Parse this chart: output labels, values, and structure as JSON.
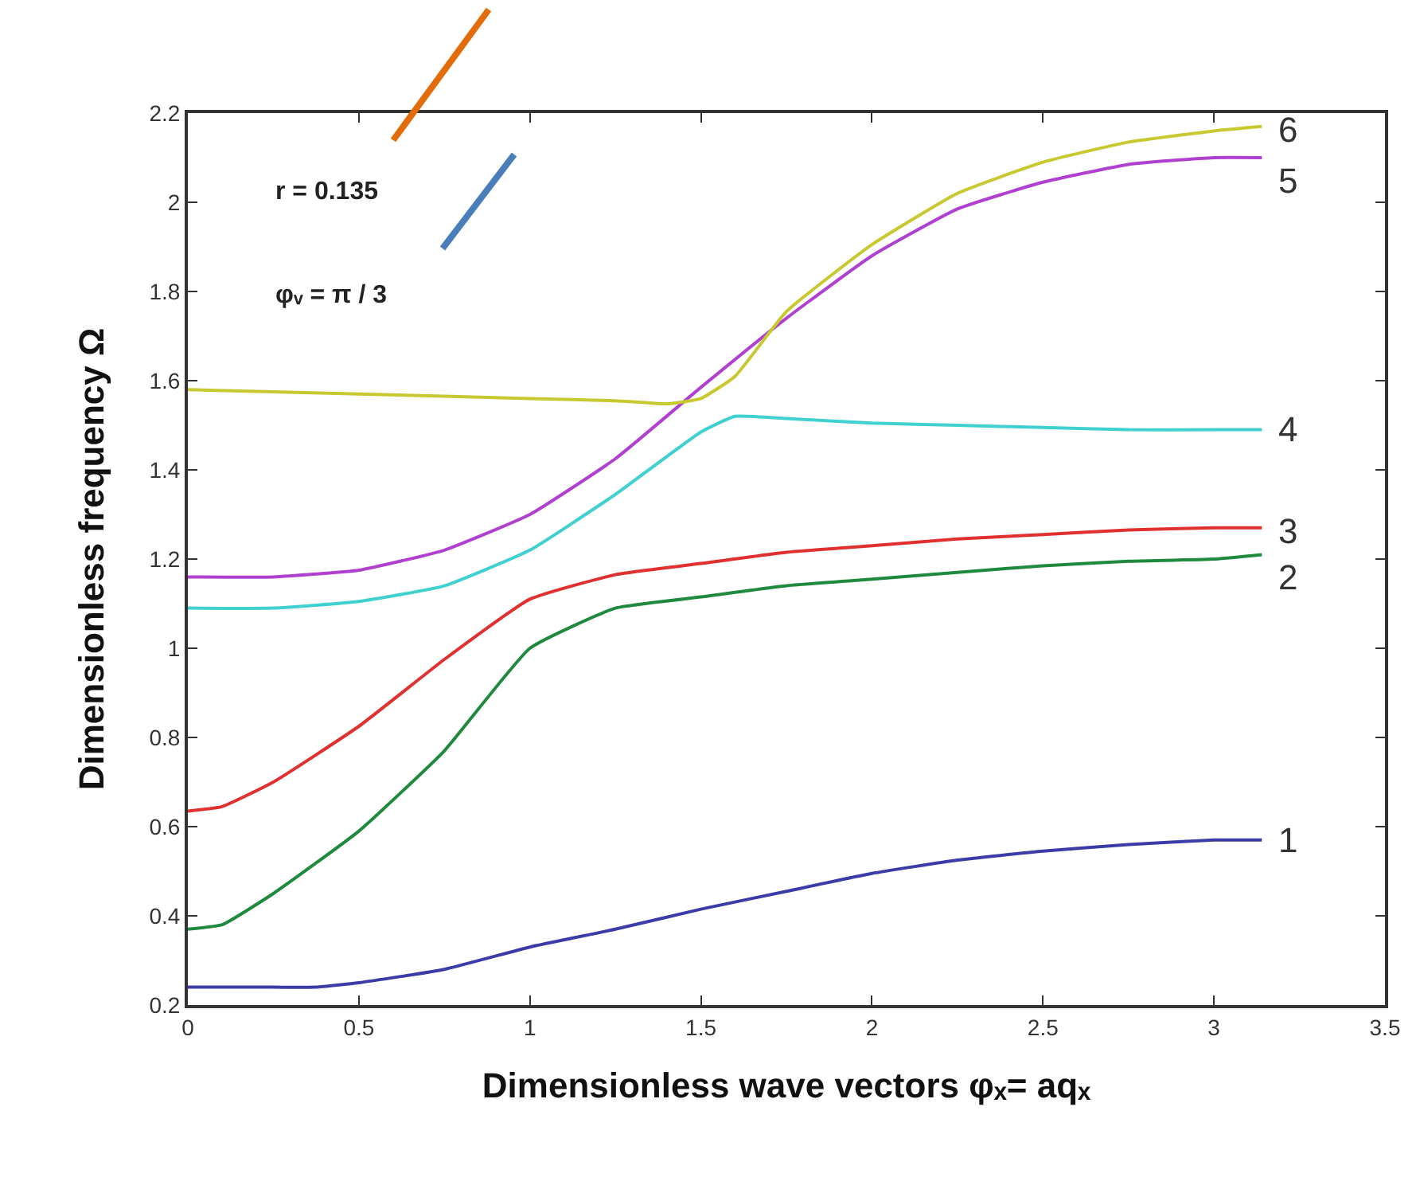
{
  "chart_data": {
    "type": "line",
    "xlabel": "Dimensionless wave vectors φₓ= aqₓ",
    "ylabel": "Dimensionless frequency Ω",
    "annotations": [
      "r = 0.135",
      "φᵥ = π / 3"
    ],
    "xlim": [
      0,
      3.5
    ],
    "xticks": [
      0,
      0.5,
      1,
      1.5,
      2,
      2.5,
      3,
      3.5
    ],
    "ylim": [
      0.2,
      2.2
    ],
    "yticks": [
      0.2,
      0.4,
      0.6,
      0.8,
      1,
      1.2,
      1.4,
      1.6,
      1.8,
      2,
      2.2
    ],
    "grid": false,
    "legend": false,
    "marker": "none",
    "line_style": "solid",
    "series": [
      {
        "name": "1",
        "color": "#3c3ca8",
        "x": [
          0,
          0.25,
          0.375,
          0.5,
          0.75,
          1,
          1.25,
          1.5,
          1.75,
          2,
          2.25,
          2.5,
          2.75,
          3,
          3.14
        ],
        "values": [
          0.24,
          0.24,
          0.24,
          0.25,
          0.28,
          0.33,
          0.37,
          0.415,
          0.455,
          0.495,
          0.525,
          0.545,
          0.56,
          0.57,
          0.57
        ]
      },
      {
        "name": "2",
        "color": "#1f8a3e",
        "x": [
          0,
          0.1,
          0.25,
          0.5,
          0.75,
          1,
          1.25,
          1.5,
          1.75,
          2,
          2.25,
          2.5,
          2.75,
          3,
          3.14
        ],
        "values": [
          0.37,
          0.38,
          0.45,
          0.59,
          0.77,
          1.0,
          1.09,
          1.115,
          1.14,
          1.155,
          1.17,
          1.185,
          1.195,
          1.2,
          1.21
        ]
      },
      {
        "name": "3",
        "color": "#e03030",
        "x": [
          0,
          0.1,
          0.25,
          0.5,
          0.75,
          1,
          1.25,
          1.5,
          1.75,
          2,
          2.25,
          2.5,
          2.75,
          3,
          3.14
        ],
        "values": [
          0.635,
          0.645,
          0.7,
          0.825,
          0.975,
          1.11,
          1.165,
          1.19,
          1.215,
          1.23,
          1.245,
          1.255,
          1.265,
          1.27,
          1.27
        ]
      },
      {
        "name": "4",
        "color": "#40d0d0",
        "x": [
          0,
          0.25,
          0.5,
          0.75,
          1,
          1.25,
          1.5,
          1.6,
          1.75,
          2,
          2.25,
          2.5,
          2.75,
          3,
          3.14
        ],
        "values": [
          1.09,
          1.09,
          1.105,
          1.14,
          1.22,
          1.345,
          1.485,
          1.52,
          1.515,
          1.505,
          1.5,
          1.495,
          1.49,
          1.49,
          1.49
        ]
      },
      {
        "name": "5",
        "color": "#b040d0",
        "x": [
          0,
          0.25,
          0.5,
          0.75,
          1,
          1.25,
          1.5,
          1.75,
          2,
          2.25,
          2.5,
          2.75,
          3,
          3.14
        ],
        "values": [
          1.16,
          1.16,
          1.175,
          1.22,
          1.3,
          1.425,
          1.585,
          1.74,
          1.88,
          1.985,
          2.045,
          2.085,
          2.1,
          2.1
        ]
      },
      {
        "name": "6",
        "color": "#c8c830",
        "x": [
          0,
          0.5,
          1,
          1.25,
          1.4,
          1.5,
          1.6,
          1.75,
          2,
          2.25,
          2.5,
          2.75,
          3,
          3.14
        ],
        "values": [
          1.58,
          1.57,
          1.56,
          1.555,
          1.548,
          1.56,
          1.61,
          1.755,
          1.905,
          2.02,
          2.09,
          2.135,
          2.16,
          2.17
        ]
      }
    ]
  }
}
